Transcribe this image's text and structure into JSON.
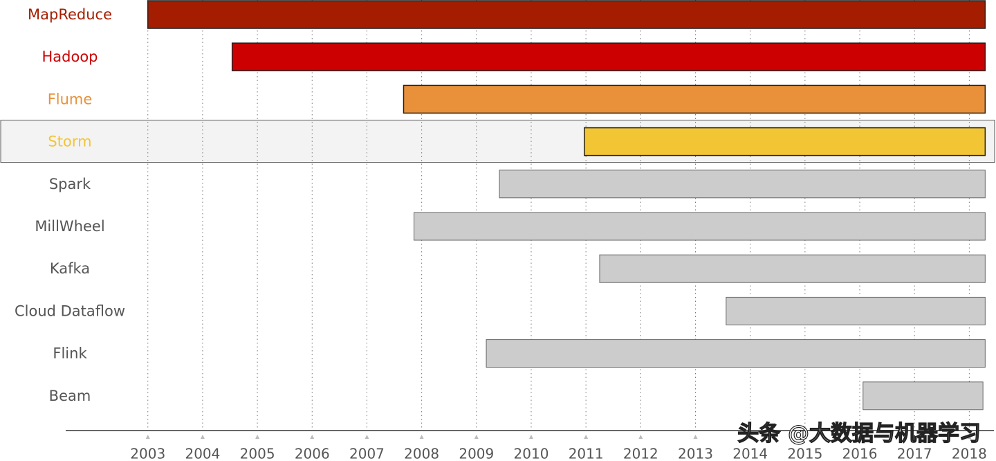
{
  "chart_data": {
    "type": "gantt",
    "categories": [
      "MapReduce",
      "Hadoop",
      "Flume",
      "Storm",
      "Spark",
      "MillWheel",
      "Kafka",
      "Cloud Dataflow",
      "Flink",
      "Beam"
    ],
    "start": [
      2003.0,
      2004.54,
      2007.67,
      2010.97,
      2009.42,
      2007.86,
      2011.25,
      2013.56,
      2009.18,
      2016.06
    ],
    "end": [
      2018.29,
      2018.29,
      2018.29,
      2018.29,
      2018.29,
      2018.29,
      2018.29,
      2018.29,
      2018.29,
      2018.25
    ],
    "colors": [
      "#a51d00",
      "#cc0000",
      "#e8913a",
      "#f2c535",
      "#cccccc",
      "#cccccc",
      "#cccccc",
      "#cccccc",
      "#cccccc",
      "#cccccc"
    ],
    "label_colors": [
      "#a51d00",
      "#cc0000",
      "#e8913a",
      "#f2c535",
      "#555555",
      "#555555",
      "#555555",
      "#555555",
      "#555555",
      "#555555"
    ],
    "highlight_index": 3,
    "xlim": [
      2001.5,
      2018.45
    ],
    "xticks": [
      2003,
      2004,
      2005,
      2006,
      2007,
      2008,
      2009,
      2010,
      2011,
      2012,
      2013,
      2014,
      2015,
      2016,
      2017,
      2018
    ],
    "grid": true,
    "watermark": "头条 @大数据与机器学习"
  }
}
